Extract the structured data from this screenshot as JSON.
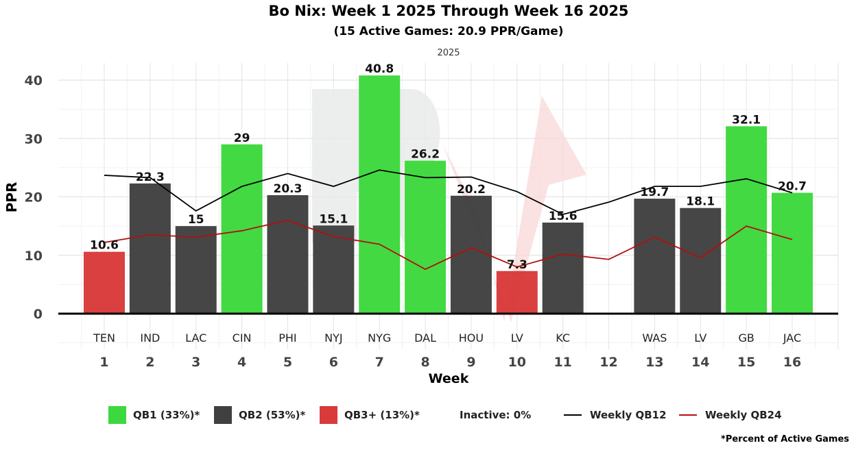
{
  "title": "Bo Nix: Week 1 2025 Through Week 16 2025",
  "subtitle": "(15 Active Games: 20.9 PPR/Game)",
  "facet_label": "2025",
  "footnote": "*Percent of Active Games",
  "colors": {
    "qb1": "#3dd83d",
    "qb2": "#404040",
    "qb3": "#d93a3a",
    "qb12_line": "#000000",
    "qb24_line": "#b01010",
    "watermark": "#e9eaea",
    "watermark_arrow": "#f8d8d8"
  },
  "legend": {
    "qb1": "QB1 (33%)*",
    "qb2": "QB2 (53%)*",
    "qb3": "QB3+ (13%)*",
    "inactive": "Inactive: 0%",
    "qb12": "Weekly QB12",
    "qb24": "Weekly QB24"
  },
  "chart_data": {
    "type": "bar",
    "title": "Bo Nix: Week 1 2025 Through Week 16 2025",
    "subtitle": "(15 Active Games: 20.9 PPR/Game)",
    "xlabel": "Week",
    "ylabel": "PPR",
    "ylim": [
      -5,
      42
    ],
    "yticks": [
      0,
      10,
      20,
      30,
      40
    ],
    "weeks": [
      "1",
      "2",
      "3",
      "4",
      "5",
      "6",
      "7",
      "8",
      "9",
      "10",
      "11",
      "12",
      "13",
      "14",
      "15",
      "16"
    ],
    "opponents": [
      "TEN",
      "IND",
      "LAC",
      "CIN",
      "PHI",
      "NYJ",
      "NYG",
      "DAL",
      "HOU",
      "LV",
      "KC",
      "",
      "WAS",
      "LV",
      "GB",
      "JAC"
    ],
    "values": [
      10.6,
      22.3,
      15,
      29,
      20.3,
      15.1,
      40.8,
      26.2,
      20.2,
      7.3,
      15.6,
      null,
      19.7,
      18.1,
      32.1,
      20.7
    ],
    "tiers": [
      "qb3",
      "qb2",
      "qb2",
      "qb1",
      "qb2",
      "qb2",
      "qb1",
      "qb1",
      "qb2",
      "qb3",
      "qb2",
      null,
      "qb2",
      "qb2",
      "qb1",
      "qb1"
    ],
    "series": [
      {
        "name": "Weekly QB12",
        "values": [
          23.7,
          23.3,
          17.6,
          21.8,
          24.0,
          21.8,
          24.6,
          23.3,
          23.4,
          20.9,
          17.0,
          19.1,
          21.8,
          21.8,
          23.1,
          20.7
        ]
      },
      {
        "name": "Weekly QB24",
        "values": [
          12.2,
          13.5,
          13.1,
          14.2,
          16.0,
          13.2,
          11.9,
          7.6,
          11.3,
          8.0,
          10.2,
          9.3,
          13.1,
          9.6,
          15.0,
          12.7
        ]
      }
    ],
    "legend_position": "bottom"
  }
}
